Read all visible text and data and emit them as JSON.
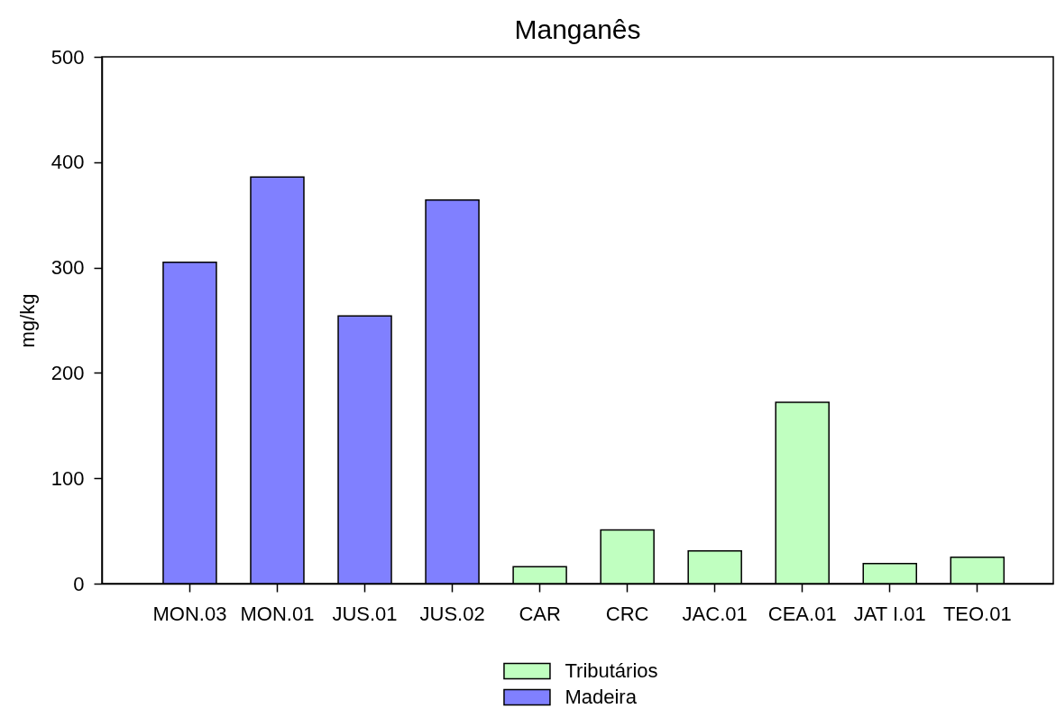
{
  "chart_data": {
    "type": "bar",
    "title": "Manganês",
    "ylabel": "mg/kg",
    "categories": [
      "MON.03",
      "MON.01",
      "JUS.01",
      "JUS.02",
      "CAR",
      "CRC",
      "JAC.01",
      "CEA.01",
      "JAT I.01",
      "TEO.01"
    ],
    "series": [
      {
        "name": "Tributários",
        "color": "#c0ffc0",
        "values": [
          null,
          null,
          null,
          null,
          16,
          51,
          31,
          172,
          19,
          25
        ]
      },
      {
        "name": "Madeira",
        "color": "#8080ff",
        "values": [
          305,
          386,
          254,
          364,
          null,
          null,
          null,
          null,
          null,
          null
        ]
      }
    ],
    "ylim": [
      0,
      500
    ],
    "yticks": [
      0,
      100,
      200,
      300,
      400,
      500
    ],
    "legend": "bottom"
  }
}
